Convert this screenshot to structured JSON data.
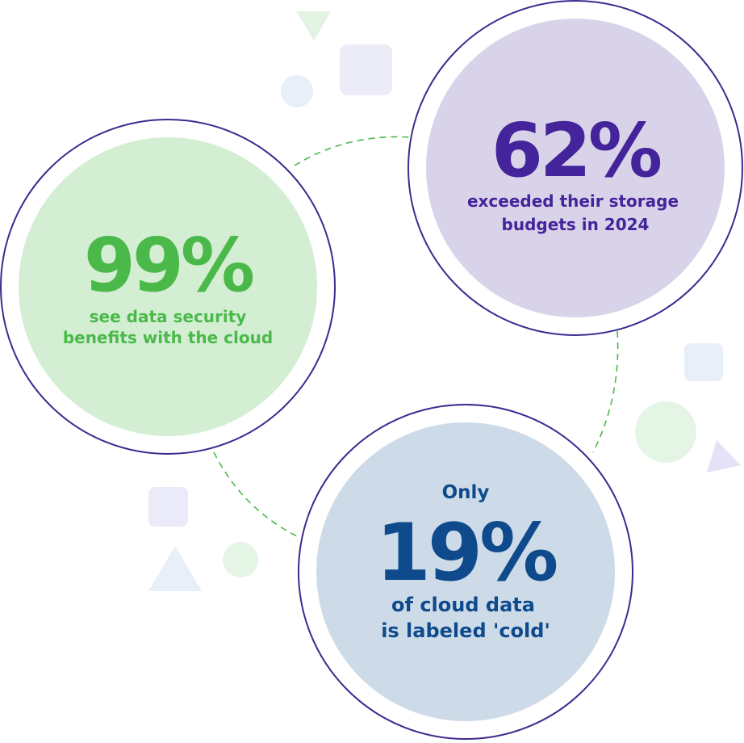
{
  "stats": [
    {
      "value": "99%",
      "lines": [
        "see data security",
        "benefits with the cloud"
      ]
    },
    {
      "value": "62%",
      "lines": [
        "exceeded their storage",
        "budgets in 2024"
      ]
    },
    {
      "prefix": "Only",
      "value": "19%",
      "lines": [
        "of cloud data",
        "is labeled 'cold'"
      ]
    }
  ]
}
